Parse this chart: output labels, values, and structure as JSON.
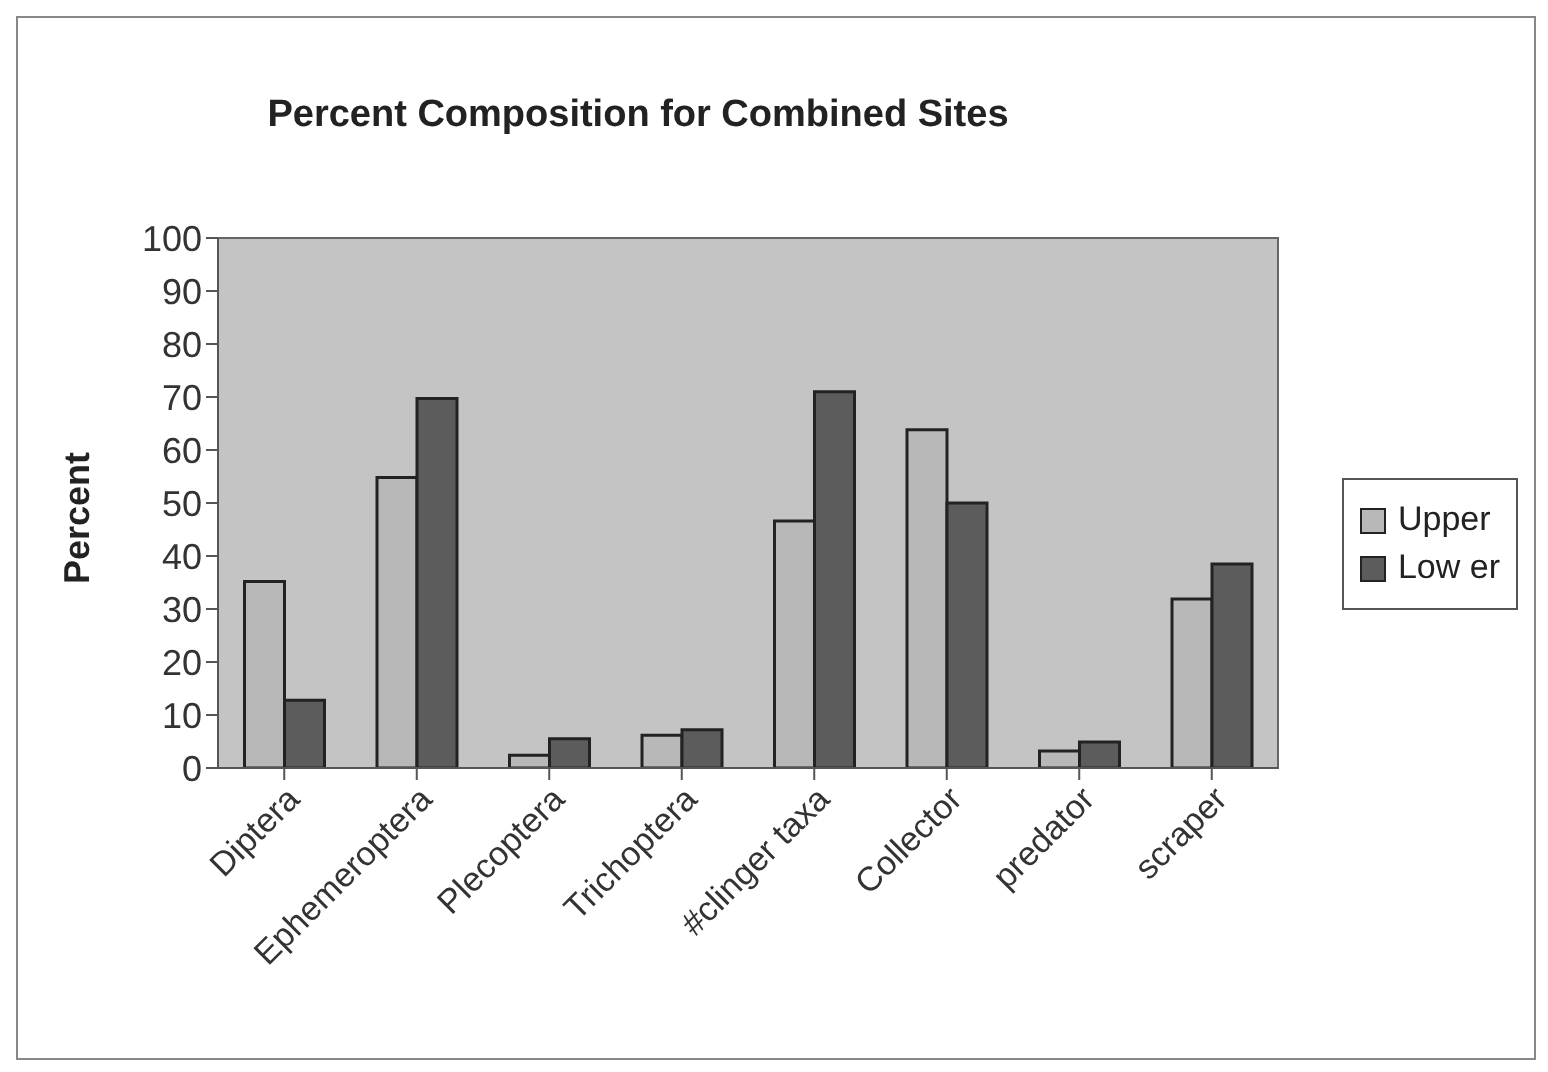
{
  "chart_data": {
    "type": "bar",
    "title": "Percent Composition for Combined Sites",
    "ylabel": "Percent",
    "categories": [
      "Diptera",
      "Ephemeroptera",
      "Plecoptera",
      "Trichoptera",
      "#clinger taxa",
      "Collector",
      "predator",
      "scraper"
    ],
    "series": [
      {
        "name": "Upper",
        "color": "#b8b8b8",
        "values": [
          35.2,
          54.8,
          2.4,
          6.2,
          46.6,
          63.8,
          3.2,
          31.9
        ]
      },
      {
        "name": "Low er",
        "color": "#5c5c5c",
        "values": [
          12.8,
          69.7,
          5.5,
          7.2,
          71,
          50,
          4.9,
          38.5
        ]
      }
    ],
    "ylim": [
      0,
      100
    ],
    "yticks": [
      0,
      10,
      20,
      30,
      40,
      50,
      60,
      70,
      80,
      90,
      100
    ],
    "legend": "right"
  }
}
